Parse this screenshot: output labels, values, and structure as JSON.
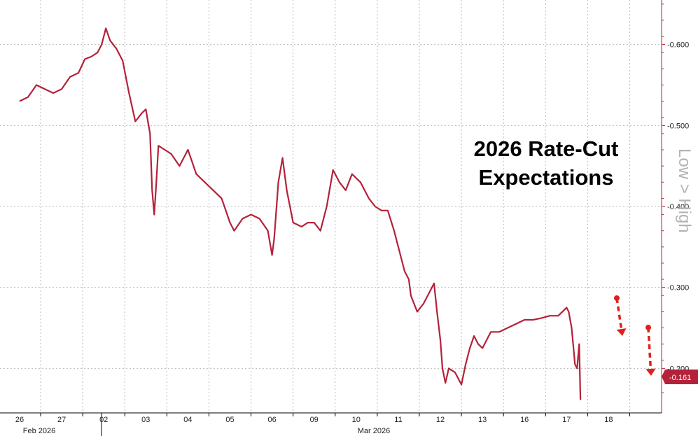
{
  "chart_data": {
    "type": "line",
    "title": "",
    "annotation_lines": [
      "2026 Rate-Cut",
      "Expectations"
    ],
    "side_axis_label": "Low > High",
    "x_tick_labels": [
      "26",
      "27",
      "02",
      "03",
      "04",
      "05",
      "06",
      "09",
      "10",
      "11",
      "12",
      "13",
      "16",
      "17",
      "18"
    ],
    "month_labels": [
      "Feb 2026",
      "Mar 2026"
    ],
    "y_tick_labels": [
      "-0.600",
      "-0.500",
      "-0.400",
      "-0.300",
      "-0.200"
    ],
    "ylim": [
      -0.145,
      -0.655
    ],
    "grid": true,
    "series": [
      {
        "color": "#b5213a",
        "last_value_label": "-0.161",
        "points": [
          [
            0.0,
            -0.53
          ],
          [
            0.2,
            -0.535
          ],
          [
            0.4,
            -0.55
          ],
          [
            0.6,
            -0.545
          ],
          [
            0.8,
            -0.54
          ],
          [
            1.0,
            -0.545
          ],
          [
            1.2,
            -0.56
          ],
          [
            1.4,
            -0.565
          ],
          [
            1.55,
            -0.582
          ],
          [
            1.7,
            -0.585
          ],
          [
            1.85,
            -0.59
          ],
          [
            1.95,
            -0.6
          ],
          [
            2.05,
            -0.62
          ],
          [
            2.15,
            -0.605
          ],
          [
            2.3,
            -0.595
          ],
          [
            2.45,
            -0.58
          ],
          [
            2.6,
            -0.54
          ],
          [
            2.75,
            -0.505
          ],
          [
            2.9,
            -0.515
          ],
          [
            3.0,
            -0.52
          ],
          [
            3.1,
            -0.49
          ],
          [
            3.15,
            -0.42
          ],
          [
            3.2,
            -0.39
          ],
          [
            3.25,
            -0.43
          ],
          [
            3.3,
            -0.475
          ],
          [
            3.45,
            -0.47
          ],
          [
            3.6,
            -0.465
          ],
          [
            3.8,
            -0.45
          ],
          [
            4.0,
            -0.47
          ],
          [
            4.2,
            -0.44
          ],
          [
            4.4,
            -0.43
          ],
          [
            4.6,
            -0.42
          ],
          [
            4.8,
            -0.41
          ],
          [
            5.0,
            -0.38
          ],
          [
            5.1,
            -0.37
          ],
          [
            5.3,
            -0.385
          ],
          [
            5.5,
            -0.39
          ],
          [
            5.7,
            -0.385
          ],
          [
            5.9,
            -0.37
          ],
          [
            6.0,
            -0.34
          ],
          [
            6.05,
            -0.36
          ],
          [
            6.15,
            -0.43
          ],
          [
            6.25,
            -0.46
          ],
          [
            6.35,
            -0.42
          ],
          [
            6.5,
            -0.38
          ],
          [
            6.7,
            -0.375
          ],
          [
            6.85,
            -0.38
          ],
          [
            7.0,
            -0.38
          ],
          [
            7.15,
            -0.37
          ],
          [
            7.3,
            -0.4
          ],
          [
            7.45,
            -0.445
          ],
          [
            7.6,
            -0.43
          ],
          [
            7.75,
            -0.42
          ],
          [
            7.9,
            -0.44
          ],
          [
            8.1,
            -0.43
          ],
          [
            8.3,
            -0.41
          ],
          [
            8.45,
            -0.4
          ],
          [
            8.6,
            -0.395
          ],
          [
            8.75,
            -0.395
          ],
          [
            8.9,
            -0.37
          ],
          [
            9.05,
            -0.34
          ],
          [
            9.15,
            -0.32
          ],
          [
            9.25,
            -0.31
          ],
          [
            9.3,
            -0.29
          ],
          [
            9.45,
            -0.27
          ],
          [
            9.6,
            -0.28
          ],
          [
            9.75,
            -0.295
          ],
          [
            9.85,
            -0.305
          ],
          [
            9.92,
            -0.27
          ],
          [
            10.0,
            -0.235
          ],
          [
            10.05,
            -0.2
          ],
          [
            10.12,
            -0.182
          ],
          [
            10.2,
            -0.2
          ],
          [
            10.35,
            -0.195
          ],
          [
            10.5,
            -0.18
          ],
          [
            10.6,
            -0.205
          ],
          [
            10.7,
            -0.225
          ],
          [
            10.8,
            -0.24
          ],
          [
            10.9,
            -0.23
          ],
          [
            11.0,
            -0.225
          ],
          [
            11.2,
            -0.245
          ],
          [
            11.4,
            -0.245
          ],
          [
            11.6,
            -0.25
          ],
          [
            11.8,
            -0.255
          ],
          [
            12.0,
            -0.26
          ],
          [
            12.2,
            -0.26
          ],
          [
            12.4,
            -0.262
          ],
          [
            12.6,
            -0.265
          ],
          [
            12.8,
            -0.265
          ],
          [
            12.9,
            -0.27
          ],
          [
            13.0,
            -0.275
          ],
          [
            13.05,
            -0.27
          ],
          [
            13.12,
            -0.25
          ],
          [
            13.2,
            -0.205
          ],
          [
            13.25,
            -0.2
          ],
          [
            13.3,
            -0.23
          ],
          [
            13.33,
            -0.161
          ]
        ]
      }
    ],
    "arrows_color": "#e0201e"
  }
}
